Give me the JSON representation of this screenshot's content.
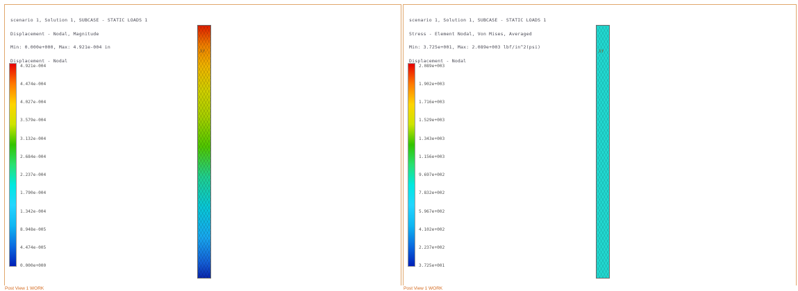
{
  "panels": [
    {
      "header": [
        "scenario 1, Solution 1, SUBCASE - STATIC LOADS 1",
        "Displacement - Nodal, Magnitude",
        "Min: 0.000e+000, Max: 4.921e-004 in",
        "Displacement - Nodal"
      ],
      "legend": [
        "4.921e-004",
        "4.474e-004",
        "4.027e-004",
        "3.579e-004",
        "3.132e-004",
        "2.684e-004",
        "2.237e-004",
        "1.790e-004",
        "1.342e-004",
        "8.948e-005",
        "4.474e-005",
        "0.000e+000"
      ],
      "footer": "Post View 1 WORK",
      "marker": "XY"
    },
    {
      "header": [
        "scenario 1, Solution 1, SUBCASE - STATIC LOADS 1",
        "Stress - Element Nodal, Von Mises, Averaged",
        "Min: 3.725e+001, Max: 2.089e+003 lbf/in^2(psi)",
        "Displacement - Nodal"
      ],
      "legend": [
        "2.089e+003",
        "1.902e+003",
        "1.716e+003",
        "1.529e+003",
        "1.343e+003",
        "1.156e+003",
        "9.697e+002",
        "7.832e+002",
        "5.967e+002",
        "4.102e+002",
        "2.237e+002",
        "3.725e+001"
      ],
      "footer": "Post View 1 WORK",
      "marker": "XY"
    }
  ],
  "colors": {
    "frame": "#e0a66b",
    "footer": "#d46a1f",
    "uniform_stress": "#22d8d0"
  }
}
